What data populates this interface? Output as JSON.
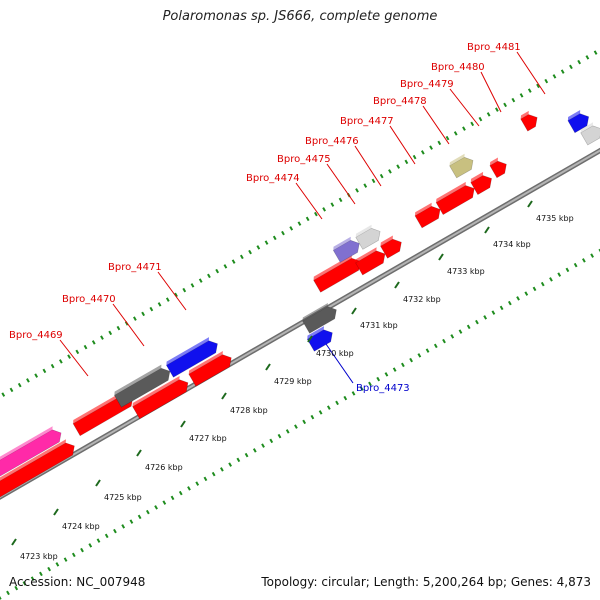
{
  "title": "Polaromonas sp. JS666, complete genome",
  "footer": {
    "accession": "Accession: NC_007948",
    "summary": "Topology: circular; Length: 5,200,264 bp; Genes: 4,873"
  },
  "colors": {
    "red": "#ff0000",
    "blue": "#1010ee",
    "dark_gray": "#5a5a5a",
    "light_gray": "#d4d4d4",
    "olive": "#c8c080",
    "lavender": "#8070d0",
    "magenta": "#ff2aa8",
    "backbone": "#9a9a9a",
    "tick_green": "#1e8c1e",
    "label_red": "#dd0000",
    "label_blue": "#0000cc"
  },
  "scale_labels": [
    "4723 kbp",
    "4724 kbp",
    "4725 kbp",
    "4726 kbp",
    "4727 kbp",
    "4728 kbp",
    "4729 kbp",
    "4730 kbp",
    "4731 kbp",
    "4732 kbp",
    "4733 kbp",
    "4734 kbp",
    "4735 kbp"
  ],
  "gene_labels": [
    {
      "name": "Bpro_4469",
      "color": "red"
    },
    {
      "name": "Bpro_4470",
      "color": "red"
    },
    {
      "name": "Bpro_4471",
      "color": "red"
    },
    {
      "name": "Bpro_4473",
      "color": "blue"
    },
    {
      "name": "Bpro_4474",
      "color": "red"
    },
    {
      "name": "Bpro_4475",
      "color": "red"
    },
    {
      "name": "Bpro_4476",
      "color": "red"
    },
    {
      "name": "Bpro_4477",
      "color": "red"
    },
    {
      "name": "Bpro_4478",
      "color": "red"
    },
    {
      "name": "Bpro_4479",
      "color": "red"
    },
    {
      "name": "Bpro_4480",
      "color": "red"
    },
    {
      "name": "Bpro_4481",
      "color": "red"
    }
  ]
}
